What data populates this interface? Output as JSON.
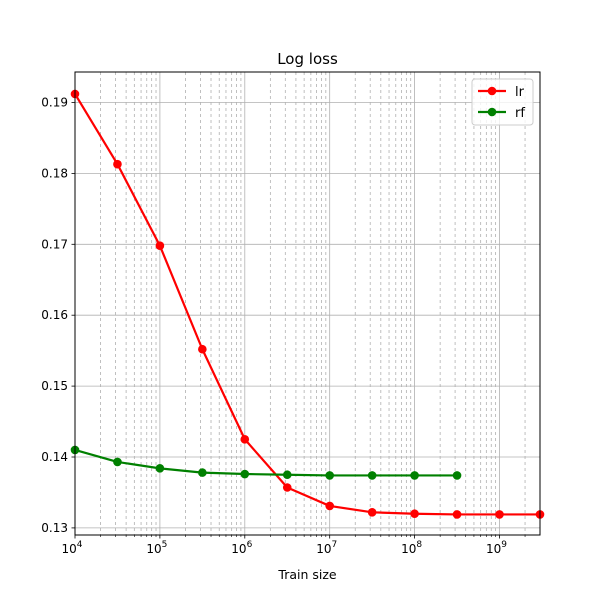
{
  "chart_data": {
    "type": "line",
    "title": "Log loss",
    "xlabel": "Train size",
    "ylabel": "",
    "xscale": "log",
    "xlim": [
      10000,
      3000000000
    ],
    "ylim": [
      0.129,
      0.1943
    ],
    "x_ticks": [
      {
        "value": 10000,
        "base": "10",
        "exp": "4"
      },
      {
        "value": 100000,
        "base": "10",
        "exp": "5"
      },
      {
        "value": 1000000,
        "base": "10",
        "exp": "6"
      },
      {
        "value": 10000000,
        "base": "10",
        "exp": "7"
      },
      {
        "value": 100000000,
        "base": "10",
        "exp": "8"
      },
      {
        "value": 1000000000,
        "base": "10",
        "exp": "9"
      }
    ],
    "y_ticks": [
      {
        "value": 0.13,
        "label": "0.13"
      },
      {
        "value": 0.14,
        "label": "0.14"
      },
      {
        "value": 0.15,
        "label": "0.15"
      },
      {
        "value": 0.16,
        "label": "0.16"
      },
      {
        "value": 0.17,
        "label": "0.17"
      },
      {
        "value": 0.18,
        "label": "0.18"
      },
      {
        "value": 0.19,
        "label": "0.19"
      }
    ],
    "grid": true,
    "legend_position": "top-right",
    "series": [
      {
        "name": "lr",
        "color": "#ff0000",
        "x": [
          10000,
          31623,
          100000,
          316228,
          1000000,
          3162278,
          10000000,
          31622777,
          100000000,
          316227766,
          1000000000,
          3000000000
        ],
        "y": [
          0.1912,
          0.1813,
          0.1698,
          0.1552,
          0.1425,
          0.1357,
          0.1331,
          0.1322,
          0.132,
          0.1319,
          0.1319,
          0.1319
        ]
      },
      {
        "name": "rf",
        "color": "#008000",
        "x": [
          10000,
          31623,
          100000,
          316228,
          1000000,
          3162278,
          10000000,
          31622777,
          100000000,
          316227766
        ],
        "y": [
          0.141,
          0.1393,
          0.1384,
          0.1378,
          0.1376,
          0.1375,
          0.1374,
          0.1374,
          0.1374,
          0.1374
        ]
      }
    ]
  }
}
